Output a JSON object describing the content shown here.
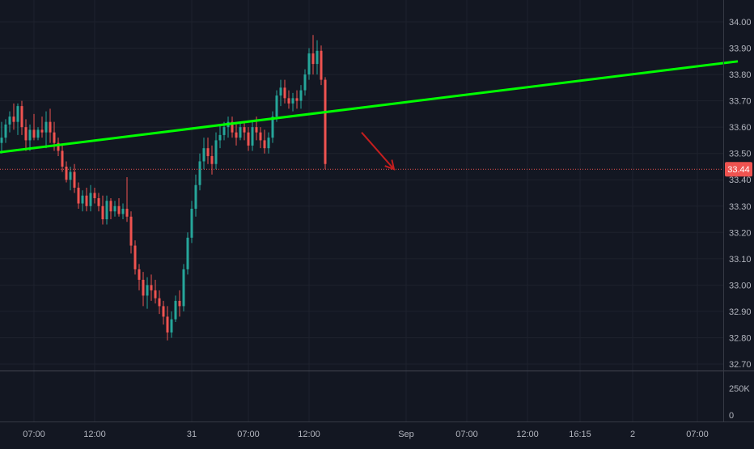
{
  "chart_data": {
    "type": "candlestick",
    "title": "",
    "xlabel": "",
    "ylabel": "",
    "ylim": [
      32.7,
      34.0
    ],
    "y_ticks": [
      "34.00",
      "33.90",
      "33.80",
      "33.70",
      "33.60",
      "33.50",
      "33.40",
      "33.30",
      "33.20",
      "33.10",
      "33.00",
      "32.90",
      "32.80",
      "32.70"
    ],
    "x_ticks": [
      {
        "label": "07:00",
        "idx": 8
      },
      {
        "label": "12:00",
        "idx": 23
      },
      {
        "label": "31",
        "idx": 47
      },
      {
        "label": "07:00",
        "idx": 61
      },
      {
        "label": "12:00",
        "idx": 76
      },
      {
        "label": "Sep",
        "idx": 100
      },
      {
        "label": "07:00",
        "idx": 115
      },
      {
        "label": "12:00",
        "idx": 130
      },
      {
        "label": "16:15",
        "idx": 143
      },
      {
        "label": "2",
        "idx": 156
      },
      {
        "label": "07:00",
        "idx": 172
      }
    ],
    "last_price": "33.44",
    "volume_axis": [
      "250K",
      "0"
    ],
    "colors": {
      "background": "#131722",
      "up": "#26a69a",
      "down": "#ef5350",
      "trendline": "#00ff00",
      "arrow": "#c41e1e",
      "grid": "#1e222d",
      "axis_text": "#b2b5be",
      "price_label_bg": "#ef5350"
    },
    "trendline": {
      "start": {
        "idx": -3,
        "price": 33.5
      },
      "end": {
        "idx": 182,
        "price": 33.85
      }
    },
    "annotation_arrow": {
      "from": {
        "idx": 89,
        "price": 33.58
      },
      "to": {
        "idx": 97,
        "price": 33.44
      }
    },
    "candles": [
      [
        33.54,
        33.62,
        33.5,
        33.56
      ],
      [
        33.56,
        33.63,
        33.54,
        33.61
      ],
      [
        33.61,
        33.66,
        33.58,
        33.64
      ],
      [
        33.64,
        33.69,
        33.59,
        33.62
      ],
      [
        33.62,
        33.69,
        33.57,
        33.68
      ],
      [
        33.68,
        33.7,
        33.57,
        33.6
      ],
      [
        33.6,
        33.63,
        33.51,
        33.55
      ],
      [
        33.55,
        33.61,
        33.51,
        33.59
      ],
      [
        33.59,
        33.65,
        33.55,
        33.56
      ],
      [
        33.56,
        33.6,
        33.55,
        33.59
      ],
      [
        33.59,
        33.64,
        33.56,
        33.58
      ],
      [
        33.58,
        33.66,
        33.52,
        33.62
      ],
      [
        33.62,
        33.67,
        33.54,
        33.58
      ],
      [
        33.58,
        33.62,
        33.51,
        33.54
      ],
      [
        33.54,
        33.56,
        33.49,
        33.51
      ],
      [
        33.51,
        33.53,
        33.43,
        33.45
      ],
      [
        33.45,
        33.47,
        33.39,
        33.4
      ],
      [
        33.4,
        33.45,
        33.36,
        33.43
      ],
      [
        33.43,
        33.46,
        33.35,
        33.37
      ],
      [
        33.37,
        33.39,
        33.29,
        33.31
      ],
      [
        33.31,
        33.36,
        33.28,
        33.34
      ],
      [
        33.34,
        33.37,
        33.28,
        33.3
      ],
      [
        33.3,
        33.38,
        33.28,
        33.35
      ],
      [
        33.35,
        33.37,
        33.31,
        33.33
      ],
      [
        33.33,
        33.35,
        33.28,
        33.3
      ],
      [
        33.3,
        33.34,
        33.23,
        33.25
      ],
      [
        33.25,
        33.34,
        33.23,
        33.32
      ],
      [
        33.32,
        33.33,
        33.25,
        33.28
      ],
      [
        33.28,
        33.32,
        33.26,
        33.3
      ],
      [
        33.3,
        33.33,
        33.26,
        33.27
      ],
      [
        33.27,
        33.31,
        33.25,
        33.29
      ],
      [
        33.29,
        33.41,
        33.24,
        33.26
      ],
      [
        33.26,
        33.28,
        33.12,
        33.15
      ],
      [
        33.15,
        33.17,
        33.04,
        33.06
      ],
      [
        33.06,
        33.08,
        32.98,
        33.02
      ],
      [
        33.02,
        33.05,
        32.92,
        32.96
      ],
      [
        32.96,
        33.03,
        32.91,
        33.0
      ],
      [
        33.0,
        33.04,
        32.94,
        32.98
      ],
      [
        32.98,
        33.02,
        32.93,
        32.95
      ],
      [
        32.95,
        32.98,
        32.89,
        32.92
      ],
      [
        32.92,
        32.94,
        32.85,
        32.88
      ],
      [
        32.88,
        32.92,
        32.79,
        32.82
      ],
      [
        32.82,
        32.9,
        32.8,
        32.87
      ],
      [
        32.87,
        32.96,
        32.86,
        32.94
      ],
      [
        32.94,
        32.98,
        32.88,
        32.92
      ],
      [
        32.92,
        33.08,
        32.9,
        33.06
      ],
      [
        33.06,
        33.2,
        33.04,
        33.18
      ],
      [
        33.18,
        33.32,
        33.16,
        33.29
      ],
      [
        33.29,
        33.42,
        33.26,
        33.38
      ],
      [
        33.38,
        33.5,
        33.36,
        33.47
      ],
      [
        33.47,
        33.56,
        33.44,
        33.52
      ],
      [
        33.52,
        33.56,
        33.46,
        33.49
      ],
      [
        33.49,
        33.53,
        33.42,
        33.46
      ],
      [
        33.46,
        33.58,
        33.44,
        33.55
      ],
      [
        33.55,
        33.61,
        33.52,
        33.57
      ],
      [
        33.57,
        33.62,
        33.55,
        33.6
      ],
      [
        33.6,
        33.64,
        33.56,
        33.62
      ],
      [
        33.62,
        33.64,
        33.56,
        33.58
      ],
      [
        33.58,
        33.61,
        33.53,
        33.56
      ],
      [
        33.56,
        33.62,
        33.55,
        33.6
      ],
      [
        33.6,
        33.62,
        33.55,
        33.58
      ],
      [
        33.58,
        33.6,
        33.51,
        33.53
      ],
      [
        33.53,
        33.62,
        33.51,
        33.6
      ],
      [
        33.6,
        33.64,
        33.55,
        33.58
      ],
      [
        33.58,
        33.6,
        33.52,
        33.55
      ],
      [
        33.55,
        33.59,
        33.5,
        33.52
      ],
      [
        33.52,
        33.58,
        33.5,
        33.56
      ],
      [
        33.56,
        33.66,
        33.54,
        33.64
      ],
      [
        33.64,
        33.74,
        33.62,
        33.72
      ],
      [
        33.72,
        33.78,
        33.68,
        33.75
      ],
      [
        33.75,
        33.78,
        33.69,
        33.71
      ],
      [
        33.71,
        33.74,
        33.67,
        33.69
      ],
      [
        33.69,
        33.73,
        33.66,
        33.71
      ],
      [
        33.71,
        33.74,
        33.67,
        33.7
      ],
      [
        33.7,
        33.76,
        33.67,
        33.74
      ],
      [
        33.74,
        33.82,
        33.72,
        33.8
      ],
      [
        33.8,
        33.9,
        33.78,
        33.88
      ],
      [
        33.88,
        33.95,
        33.8,
        33.84
      ],
      [
        33.84,
        33.93,
        33.8,
        33.89
      ],
      [
        33.89,
        33.91,
        33.76,
        33.78
      ],
      [
        33.78,
        33.79,
        33.44,
        33.46
      ]
    ]
  }
}
